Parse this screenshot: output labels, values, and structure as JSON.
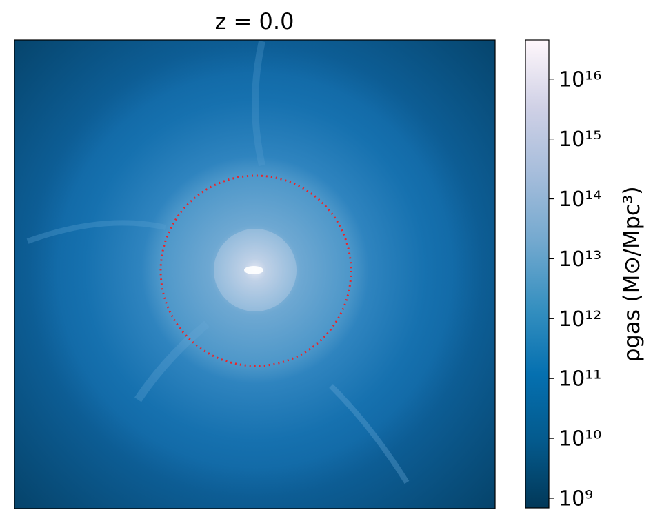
{
  "chart_data": {
    "type": "image",
    "title": "z = 0.0",
    "colorbar": {
      "label": "ρgas (M⊙/Mpc³)",
      "log": true,
      "lim": [
        690000000,
        45000000000000000
      ],
      "ticks": [
        {
          "value": 1000000000,
          "label": "10⁹"
        },
        {
          "value": 10000000000,
          "label": "10¹⁰"
        },
        {
          "value": 100000000000,
          "label": "10¹¹"
        },
        {
          "value": 1000000000000,
          "label": "10¹²"
        },
        {
          "value": 10000000000000,
          "label": "10¹³"
        },
        {
          "value": 100000000000000,
          "label": "10¹⁴"
        },
        {
          "value": 1000000000000000,
          "label": "10¹⁵"
        },
        {
          "value": 10000000000000000,
          "label": "10¹⁶"
        }
      ],
      "colormap": [
        "#023858",
        "#045a8d",
        "#0570b0",
        "#3690c0",
        "#74a9cf",
        "#a6bddb",
        "#d0d1e6",
        "#fff7fb"
      ]
    }
  }
}
